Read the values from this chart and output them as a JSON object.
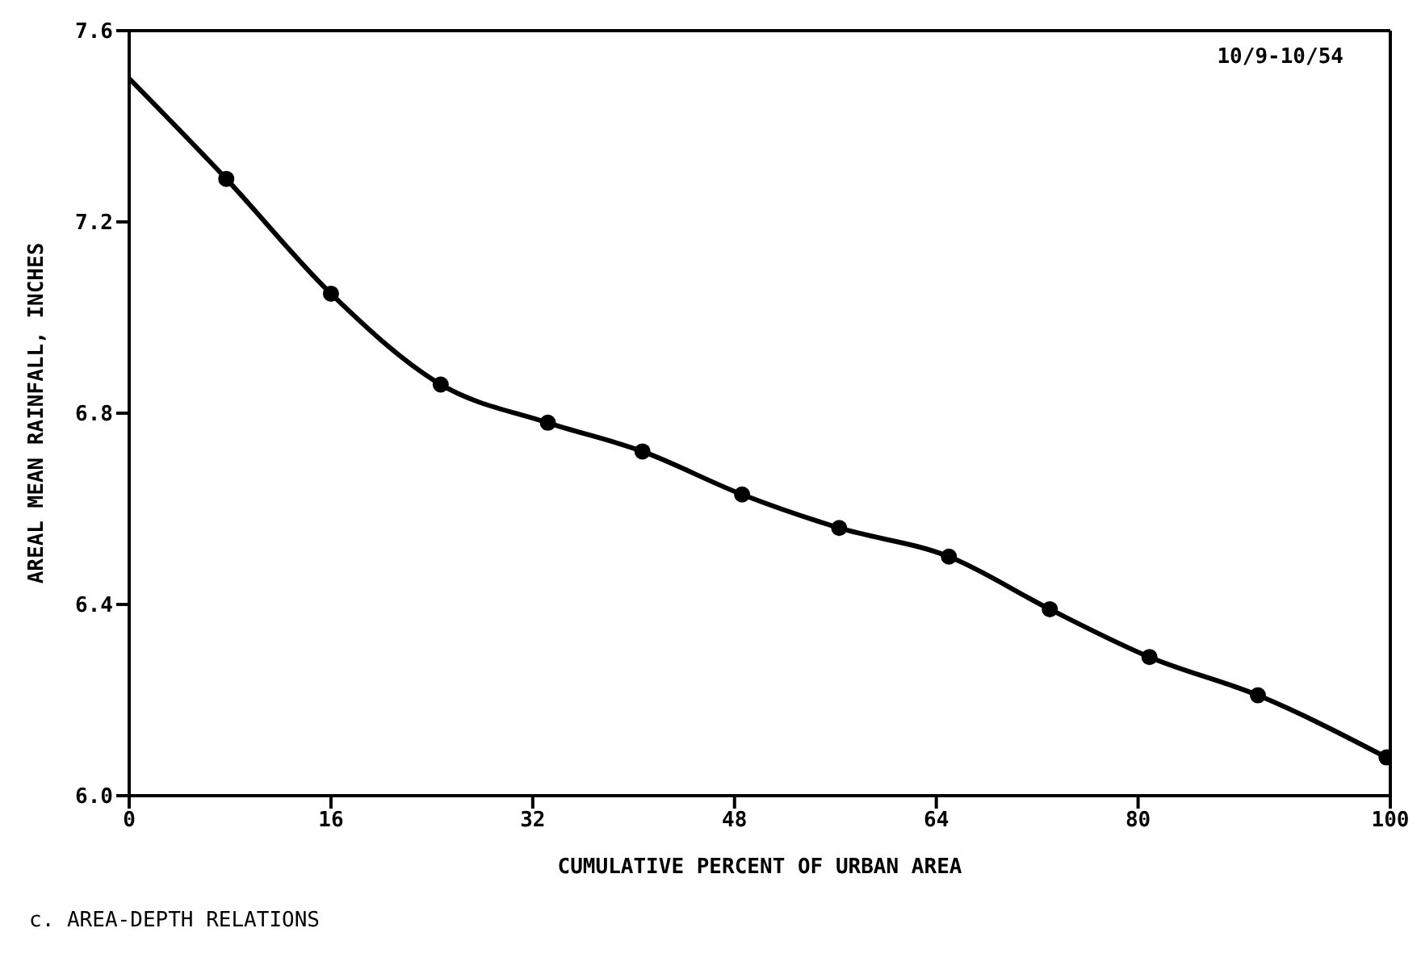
{
  "chart_data": {
    "type": "line",
    "xlabel": "CUMULATIVE PERCENT OF URBAN AREA",
    "ylabel": "AREAL MEAN RAINFALL, INCHES",
    "annotations": [
      "10/9-10/54",
      "c. AREA-DEPTH RELATIONS"
    ],
    "xlim": [
      0,
      100
    ],
    "xticks": [
      0,
      16,
      32,
      48,
      64,
      80,
      100
    ],
    "ylim": [
      6.0,
      7.6
    ],
    "yticks": [
      {
        "value": 6.0,
        "label": "6.0"
      },
      6.4,
      6.8,
      7.2,
      7.6
    ],
    "series": [
      {
        "color": "#000000",
        "marker": "none",
        "x": [
          0,
          7.7,
          16,
          24.7,
          33.2,
          40.7,
          48.6,
          56.3,
          65,
          73,
          80.9,
          89.5,
          99.7
        ],
        "values": [
          7.5,
          7.29,
          7.05,
          6.86,
          6.78,
          6.72,
          6.63,
          6.56,
          6.5,
          6.39,
          6.29,
          6.21,
          6.08
        ]
      },
      {
        "type": "scatter",
        "color": "#000000",
        "marker": "circle",
        "x": [
          7.7,
          16,
          24.7,
          33.2,
          40.7,
          48.6,
          56.3,
          65,
          73,
          80.9,
          89.5,
          99.7
        ],
        "values": [
          7.29,
          7.05,
          6.86,
          6.78,
          6.72,
          6.63,
          6.56,
          6.5,
          6.39,
          6.29,
          6.21,
          6.08
        ]
      }
    ]
  }
}
